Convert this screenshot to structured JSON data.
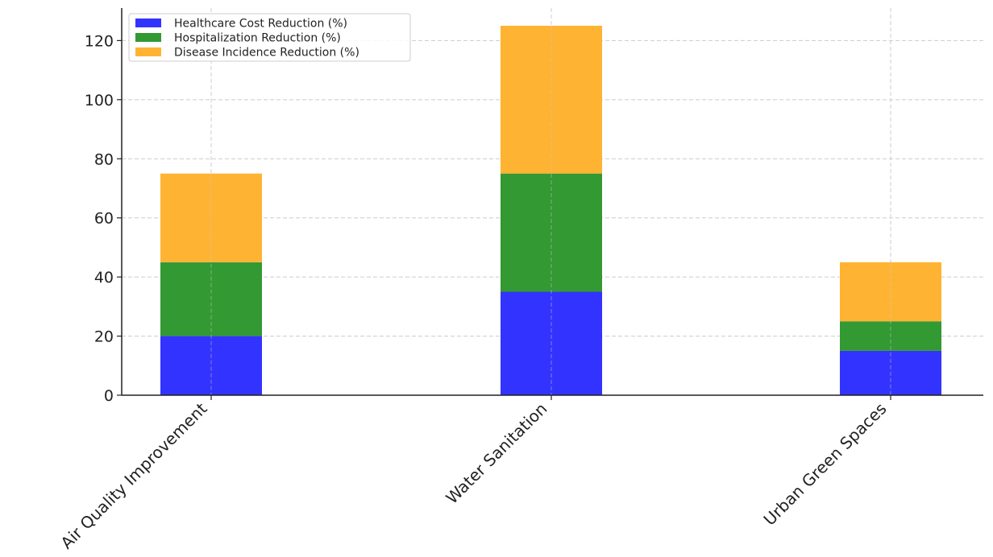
{
  "chart_data": {
    "type": "bar",
    "stacked": true,
    "categories": [
      "Air Quality Improvement",
      "Water Sanitation",
      "Urban Green Spaces"
    ],
    "series": [
      {
        "name": "Healthcare Cost Reduction (%)",
        "color": "#3333ff",
        "values": [
          20,
          35,
          15
        ]
      },
      {
        "name": "Hospitalization Reduction (%)",
        "color": "#339933",
        "values": [
          25,
          40,
          10
        ]
      },
      {
        "name": "Disease Incidence Reduction (%)",
        "color": "#ffb333",
        "values": [
          30,
          50,
          20
        ]
      }
    ],
    "yticks": [
      0,
      20,
      40,
      60,
      80,
      100,
      120
    ],
    "ylim": [
      0,
      131
    ],
    "grid": true,
    "legend_position": "top-left",
    "category_label_rotation": "45deg"
  }
}
